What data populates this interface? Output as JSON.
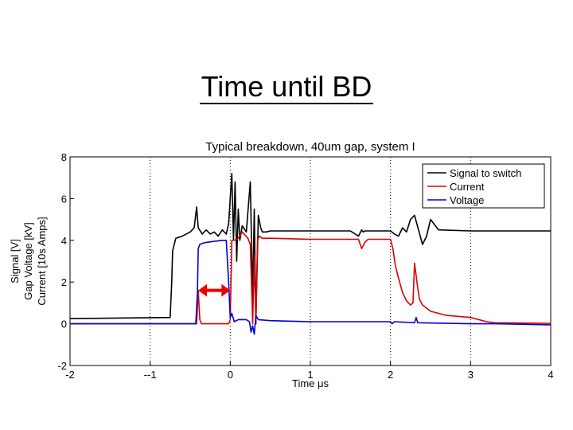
{
  "slide": {
    "title": "Time until BD"
  },
  "chart_data": {
    "type": "line",
    "title": "Typical breakdown, 40um gap, system I",
    "xlabel": "Time μs",
    "ylabel": [
      "Signal [V]",
      "Gap Voltage [kV]",
      "Current [10s Amps]"
    ],
    "xlim": [
      -2,
      4
    ],
    "ylim": [
      -2,
      8
    ],
    "x_ticks": [
      -2,
      -1,
      0,
      1,
      2,
      3,
      4
    ],
    "x_tick_labels": [
      "-2",
      "--1",
      "0",
      "1",
      "2",
      "3",
      "4"
    ],
    "y_ticks": [
      -2,
      0,
      2,
      4,
      6,
      8
    ],
    "y_tick_labels": [
      "-2",
      "0",
      "2",
      "4",
      "6",
      "8"
    ],
    "grid": "dotted vertical at x ticks",
    "legend": "top-right",
    "series": [
      {
        "name": "Signal to switch",
        "color": "#000000",
        "x": [
          -2,
          -0.75,
          -0.73,
          -0.72,
          -0.68,
          -0.6,
          -0.5,
          -0.45,
          -0.42,
          -0.4,
          -0.35,
          -0.3,
          -0.25,
          -0.2,
          -0.15,
          -0.1,
          -0.05,
          -0.02,
          0,
          0.02,
          0.04,
          0.06,
          0.08,
          0.1,
          0.12,
          0.15,
          0.2,
          0.25,
          0.28,
          0.3,
          0.32,
          0.35,
          0.38,
          0.4,
          0.45,
          0.5,
          1,
          1.5,
          1.6,
          1.64,
          1.66,
          1.68,
          1.7,
          2.0,
          2.05,
          2.1,
          2.15,
          2.2,
          2.25,
          2.3,
          2.35,
          2.4,
          2.45,
          2.5,
          2.6,
          3,
          3.5,
          4
        ],
        "y": [
          0.25,
          0.3,
          2,
          3.5,
          4.1,
          4.2,
          4.4,
          4.6,
          5.6,
          4.6,
          4.3,
          4.5,
          4.3,
          4.4,
          4.2,
          4.5,
          4.3,
          4.8,
          6.0,
          7.2,
          4.0,
          6.8,
          3.0,
          5.5,
          4.0,
          4.7,
          4.4,
          6.8,
          1.2,
          5.5,
          0.0,
          5.2,
          4.6,
          4.4,
          4.4,
          4.45,
          4.45,
          4.45,
          4.2,
          4.5,
          4.4,
          4.45,
          4.45,
          4.45,
          4.3,
          4.2,
          4.6,
          4.4,
          5.0,
          5.2,
          4.5,
          3.8,
          4.2,
          5.0,
          4.5,
          4.45,
          4.45,
          4.45
        ]
      },
      {
        "name": "Current",
        "color": "#dd0000",
        "x": [
          -2,
          -0.42,
          -0.41,
          -0.4,
          -0.38,
          -0.36,
          -0.3,
          -0.1,
          -0.02,
          0,
          0.02,
          0.05,
          0.1,
          0.15,
          0.22,
          0.25,
          0.28,
          0.3,
          0.32,
          0.34,
          0.36,
          0.4,
          0.5,
          1.0,
          1.6,
          1.64,
          1.68,
          1.72,
          2.0,
          2.03,
          2.06,
          2.1,
          2.15,
          2.2,
          2.25,
          2.28,
          2.3,
          2.33,
          2.36,
          2.4,
          2.5,
          2.7,
          3.0,
          3.2,
          3.3,
          4
        ],
        "y": [
          0,
          0,
          0.8,
          1.6,
          0.2,
          0.0,
          0.0,
          0.0,
          0.0,
          0.2,
          4.0,
          4.0,
          4.1,
          4.4,
          4.1,
          3.8,
          0.0,
          3.2,
          0.0,
          4.0,
          4.2,
          4.1,
          4.1,
          4.05,
          4.05,
          3.6,
          3.9,
          4.05,
          4.05,
          3.6,
          2.8,
          2.2,
          1.5,
          1.1,
          0.9,
          1.0,
          2.9,
          2.0,
          1.2,
          0.9,
          0.6,
          0.4,
          0.3,
          0.1,
          0.05,
          0.02
        ]
      },
      {
        "name": "Voltage",
        "color": "#0000dd",
        "x": [
          -2,
          -0.43,
          -0.42,
          -0.41,
          -0.4,
          -0.38,
          -0.35,
          -0.3,
          -0.2,
          -0.1,
          -0.05,
          -0.02,
          0,
          0.02,
          0.05,
          0.1,
          0.2,
          0.24,
          0.26,
          0.28,
          0.3,
          0.32,
          0.35,
          0.5,
          1,
          2.0,
          2.02,
          2.05,
          2.3,
          2.32,
          2.34,
          3.0,
          3.3,
          4
        ],
        "y": [
          0,
          0,
          0.8,
          1.5,
          3.6,
          3.8,
          3.85,
          3.9,
          3.95,
          4.0,
          4.0,
          2.0,
          0.3,
          0.5,
          0.1,
          0.2,
          0.2,
          0.1,
          -0.4,
          -0.1,
          -0.5,
          0.4,
          0.2,
          0.15,
          0.1,
          0.1,
          0.0,
          0.1,
          0.05,
          0.3,
          0.05,
          0.0,
          0.0,
          -0.05
        ]
      }
    ],
    "annotations": [
      {
        "type": "double-arrow",
        "color": "#ee0000",
        "from_x": -0.4,
        "to_x": 0.0,
        "y": 1.6
      }
    ]
  }
}
